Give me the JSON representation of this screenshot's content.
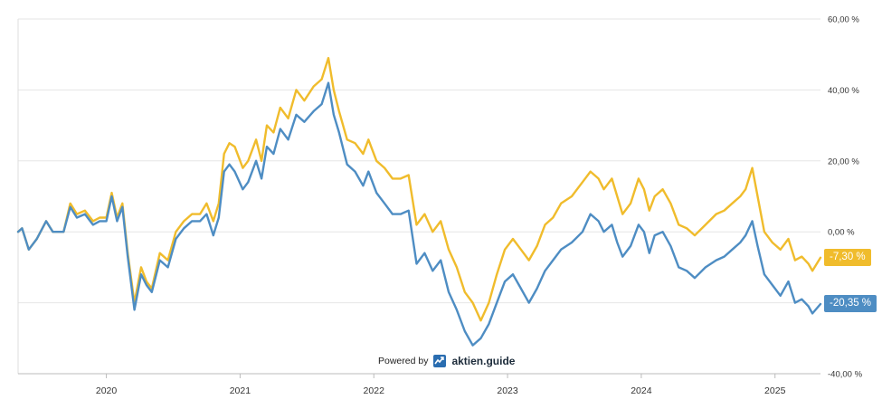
{
  "chart_data": {
    "type": "line",
    "title": "",
    "xlabel": "",
    "ylabel": "",
    "ylim": [
      -40,
      60
    ],
    "y_ticks": [
      "60,00 %",
      "40,00 %",
      "20,00 %",
      "0,00 %",
      "-40,00 %"
    ],
    "y_tick_values": [
      60,
      40,
      20,
      0,
      -40
    ],
    "x_ticks": [
      "2020",
      "2021",
      "2022",
      "2023",
      "2024",
      "2025"
    ],
    "x_tick_values": [
      2020,
      2021,
      2022,
      2023,
      2024,
      2025
    ],
    "grid": "horizontal",
    "series": [
      {
        "color": "#f0bc2c",
        "end_label": "-7,30 %",
        "points": [
          [
            2019.34,
            0
          ],
          [
            2019.37,
            1
          ],
          [
            2019.42,
            -5
          ],
          [
            2019.48,
            -2
          ],
          [
            2019.55,
            3
          ],
          [
            2019.6,
            0
          ],
          [
            2019.68,
            0
          ],
          [
            2019.73,
            8
          ],
          [
            2019.78,
            5
          ],
          [
            2019.84,
            6
          ],
          [
            2019.9,
            3
          ],
          [
            2019.95,
            4
          ],
          [
            2020.0,
            4
          ],
          [
            2020.04,
            11
          ],
          [
            2020.08,
            4
          ],
          [
            2020.12,
            8
          ],
          [
            2020.16,
            -6
          ],
          [
            2020.21,
            -20
          ],
          [
            2020.26,
            -10
          ],
          [
            2020.3,
            -14
          ],
          [
            2020.34,
            -16
          ],
          [
            2020.4,
            -6
          ],
          [
            2020.46,
            -8
          ],
          [
            2020.52,
            0
          ],
          [
            2020.58,
            3
          ],
          [
            2020.64,
            5
          ],
          [
            2020.7,
            5
          ],
          [
            2020.75,
            8
          ],
          [
            2020.8,
            3
          ],
          [
            2020.84,
            8
          ],
          [
            2020.88,
            22
          ],
          [
            2020.92,
            25
          ],
          [
            2020.96,
            24
          ],
          [
            2021.02,
            18
          ],
          [
            2021.06,
            20
          ],
          [
            2021.12,
            26
          ],
          [
            2021.16,
            20
          ],
          [
            2021.2,
            30
          ],
          [
            2021.25,
            28
          ],
          [
            2021.3,
            35
          ],
          [
            2021.36,
            32
          ],
          [
            2021.42,
            40
          ],
          [
            2021.48,
            37
          ],
          [
            2021.55,
            41
          ],
          [
            2021.61,
            43
          ],
          [
            2021.66,
            49
          ],
          [
            2021.7,
            40
          ],
          [
            2021.74,
            34
          ],
          [
            2021.8,
            26
          ],
          [
            2021.86,
            25
          ],
          [
            2021.92,
            22
          ],
          [
            2021.96,
            26
          ],
          [
            2022.02,
            20
          ],
          [
            2022.08,
            18
          ],
          [
            2022.14,
            15
          ],
          [
            2022.2,
            15
          ],
          [
            2022.26,
            16
          ],
          [
            2022.32,
            2
          ],
          [
            2022.38,
            5
          ],
          [
            2022.44,
            0
          ],
          [
            2022.5,
            3
          ],
          [
            2022.56,
            -5
          ],
          [
            2022.62,
            -10
          ],
          [
            2022.68,
            -17
          ],
          [
            2022.74,
            -20
          ],
          [
            2022.8,
            -25
          ],
          [
            2022.86,
            -20
          ],
          [
            2022.92,
            -12
          ],
          [
            2022.98,
            -5
          ],
          [
            2023.04,
            -2
          ],
          [
            2023.1,
            -5
          ],
          [
            2023.16,
            -8
          ],
          [
            2023.22,
            -4
          ],
          [
            2023.28,
            2
          ],
          [
            2023.34,
            4
          ],
          [
            2023.4,
            8
          ],
          [
            2023.48,
            10
          ],
          [
            2023.56,
            14
          ],
          [
            2023.62,
            17
          ],
          [
            2023.68,
            15
          ],
          [
            2023.72,
            12
          ],
          [
            2023.78,
            15
          ],
          [
            2023.82,
            10
          ],
          [
            2023.86,
            5
          ],
          [
            2023.92,
            8
          ],
          [
            2023.98,
            15
          ],
          [
            2024.02,
            12
          ],
          [
            2024.06,
            6
          ],
          [
            2024.1,
            10
          ],
          [
            2024.16,
            12
          ],
          [
            2024.22,
            8
          ],
          [
            2024.28,
            2
          ],
          [
            2024.34,
            1
          ],
          [
            2024.4,
            -1
          ],
          [
            2024.48,
            2
          ],
          [
            2024.56,
            5
          ],
          [
            2024.62,
            6
          ],
          [
            2024.68,
            8
          ],
          [
            2024.74,
            10
          ],
          [
            2024.78,
            12
          ],
          [
            2024.83,
            18
          ],
          [
            2024.87,
            10
          ],
          [
            2024.92,
            0
          ],
          [
            2024.98,
            -3
          ],
          [
            2025.04,
            -5
          ],
          [
            2025.1,
            -2
          ],
          [
            2025.15,
            -8
          ],
          [
            2025.2,
            -7
          ],
          [
            2025.25,
            -9
          ],
          [
            2025.28,
            -11
          ],
          [
            2025.34,
            -7.3
          ]
        ]
      },
      {
        "color": "#4e8dc3",
        "end_label": "-20,35 %",
        "points": [
          [
            2019.34,
            0
          ],
          [
            2019.37,
            1
          ],
          [
            2019.42,
            -5
          ],
          [
            2019.48,
            -2
          ],
          [
            2019.55,
            3
          ],
          [
            2019.6,
            0
          ],
          [
            2019.68,
            0
          ],
          [
            2019.73,
            7
          ],
          [
            2019.78,
            4
          ],
          [
            2019.84,
            5
          ],
          [
            2019.9,
            2
          ],
          [
            2019.95,
            3
          ],
          [
            2020.0,
            3
          ],
          [
            2020.04,
            10
          ],
          [
            2020.08,
            3
          ],
          [
            2020.12,
            7
          ],
          [
            2020.16,
            -7
          ],
          [
            2020.21,
            -22
          ],
          [
            2020.26,
            -12
          ],
          [
            2020.3,
            -15
          ],
          [
            2020.34,
            -17
          ],
          [
            2020.4,
            -8
          ],
          [
            2020.46,
            -10
          ],
          [
            2020.52,
            -2
          ],
          [
            2020.58,
            1
          ],
          [
            2020.64,
            3
          ],
          [
            2020.7,
            3
          ],
          [
            2020.75,
            5
          ],
          [
            2020.8,
            -1
          ],
          [
            2020.84,
            4
          ],
          [
            2020.88,
            17
          ],
          [
            2020.92,
            19
          ],
          [
            2020.96,
            17
          ],
          [
            2021.02,
            12
          ],
          [
            2021.06,
            14
          ],
          [
            2021.12,
            20
          ],
          [
            2021.16,
            15
          ],
          [
            2021.2,
            24
          ],
          [
            2021.25,
            22
          ],
          [
            2021.3,
            29
          ],
          [
            2021.36,
            26
          ],
          [
            2021.42,
            33
          ],
          [
            2021.48,
            31
          ],
          [
            2021.55,
            34
          ],
          [
            2021.61,
            36
          ],
          [
            2021.66,
            42
          ],
          [
            2021.7,
            33
          ],
          [
            2021.74,
            28
          ],
          [
            2021.8,
            19
          ],
          [
            2021.86,
            17
          ],
          [
            2021.92,
            13
          ],
          [
            2021.96,
            17
          ],
          [
            2022.02,
            11
          ],
          [
            2022.08,
            8
          ],
          [
            2022.14,
            5
          ],
          [
            2022.2,
            5
          ],
          [
            2022.26,
            6
          ],
          [
            2022.32,
            -9
          ],
          [
            2022.38,
            -6
          ],
          [
            2022.44,
            -11
          ],
          [
            2022.5,
            -8
          ],
          [
            2022.56,
            -17
          ],
          [
            2022.62,
            -22
          ],
          [
            2022.68,
            -28
          ],
          [
            2022.74,
            -32
          ],
          [
            2022.8,
            -30
          ],
          [
            2022.86,
            -26
          ],
          [
            2022.92,
            -20
          ],
          [
            2022.98,
            -14
          ],
          [
            2023.04,
            -12
          ],
          [
            2023.1,
            -16
          ],
          [
            2023.16,
            -20
          ],
          [
            2023.22,
            -16
          ],
          [
            2023.28,
            -11
          ],
          [
            2023.34,
            -8
          ],
          [
            2023.4,
            -5
          ],
          [
            2023.48,
            -3
          ],
          [
            2023.56,
            0
          ],
          [
            2023.62,
            5
          ],
          [
            2023.68,
            3
          ],
          [
            2023.72,
            0
          ],
          [
            2023.78,
            2
          ],
          [
            2023.82,
            -3
          ],
          [
            2023.86,
            -7
          ],
          [
            2023.92,
            -4
          ],
          [
            2023.98,
            2
          ],
          [
            2024.02,
            0
          ],
          [
            2024.06,
            -6
          ],
          [
            2024.1,
            -1
          ],
          [
            2024.16,
            0
          ],
          [
            2024.22,
            -4
          ],
          [
            2024.28,
            -10
          ],
          [
            2024.34,
            -11
          ],
          [
            2024.4,
            -13
          ],
          [
            2024.48,
            -10
          ],
          [
            2024.56,
            -8
          ],
          [
            2024.62,
            -7
          ],
          [
            2024.68,
            -5
          ],
          [
            2024.74,
            -3
          ],
          [
            2024.78,
            -1
          ],
          [
            2024.83,
            3
          ],
          [
            2024.87,
            -4
          ],
          [
            2024.92,
            -12
          ],
          [
            2024.98,
            -15
          ],
          [
            2025.04,
            -18
          ],
          [
            2025.1,
            -14
          ],
          [
            2025.15,
            -20
          ],
          [
            2025.2,
            -19
          ],
          [
            2025.25,
            -21
          ],
          [
            2025.28,
            -23
          ],
          [
            2025.34,
            -20.35
          ]
        ]
      }
    ]
  },
  "watermark": {
    "prefix": "Powered by",
    "brand": "aktien.guide"
  }
}
